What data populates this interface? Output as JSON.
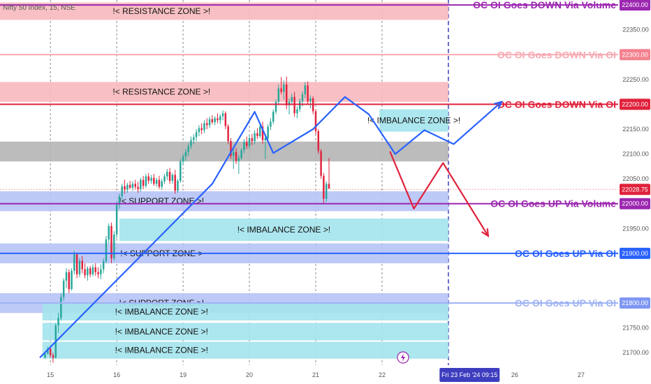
{
  "chart_data": {
    "type": "candlestick",
    "title": "Nifty 50 Index, 15, NSE",
    "ylim": [
      21675,
      22410
    ],
    "yticks": [
      22350,
      22250,
      22150,
      22100,
      22050,
      21950,
      21750,
      21700
    ],
    "current_price": "22028.75",
    "xticks": [
      {
        "label": "15",
        "x": 2
      },
      {
        "label": "16",
        "x": 27
      },
      {
        "label": "19",
        "x": 52
      },
      {
        "label": "20",
        "x": 77
      },
      {
        "label": "21",
        "x": 102
      },
      {
        "label": "22",
        "x": 127
      },
      {
        "label": "26",
        "x": 177
      },
      {
        "label": "27",
        "x": 202
      }
    ],
    "date_badge": "Fri 23 Feb '24  09:15",
    "date_badge_x": 160,
    "xlim": [
      -17,
      216
    ],
    "future_line_x": 152,
    "zones": [
      {
        "label": "!< RESISTANCE ZONE >!",
        "from": 22370,
        "to": 22405,
        "color": "#f7b9be",
        "x0": -17,
        "x1": 152
      },
      {
        "label": "!< RESISTANCE ZONE >!",
        "from": 22205,
        "to": 22245,
        "color": "#f7b9be",
        "x0": -17,
        "x1": 152
      },
      {
        "label": "",
        "from": 22085,
        "to": 22125,
        "color": "#b5b5b5",
        "x0": -17,
        "x1": 152
      },
      {
        "label": "!< IMBALANCE ZONE >!",
        "from": 22145,
        "to": 22190,
        "color": "#a3e3ec",
        "x0": 126,
        "x1": 152
      },
      {
        "label": "!< SUPPORT ZONE >!",
        "from": 21985,
        "to": 22025,
        "color": "#b6c3f5",
        "x0": -17,
        "x1": 152
      },
      {
        "label": "!< IMBALANCE ZONE >!",
        "from": 21925,
        "to": 21970,
        "color": "#a3e3ec",
        "x0": 28,
        "x1": 152
      },
      {
        "label": "!< SUPPORT ZONE >",
        "from": 21880,
        "to": 21920,
        "color": "#b6c3f5",
        "x0": -17,
        "x1": 152
      },
      {
        "label": "!< SUPPORT ZONE >!",
        "from": 21780,
        "to": 21820,
        "color": "#b6c3f5",
        "x0": -17,
        "x1": 152
      },
      {
        "label": "!< IMBALANCE ZONE >!",
        "from": 21765,
        "to": 21800,
        "color": "#a3e3ec",
        "x0": -1,
        "x1": 152
      },
      {
        "label": "!< IMBALANCE ZONE >!",
        "from": 21725,
        "to": 21760,
        "color": "#a3e3ec",
        "x0": -1,
        "x1": 152
      },
      {
        "label": "!< IMBALANCE ZONE >!",
        "from": 21688,
        "to": 21722,
        "color": "#a3e3ec",
        "x0": -1,
        "x1": 152
      }
    ],
    "levels": [
      {
        "label": "OC OI Goes DOWN Via Volume",
        "value": 22400,
        "badge": "22400.00",
        "color": "#9c27b0",
        "badge_color": "#9c27b0",
        "weight": 2
      },
      {
        "label": "OC OI Goes DOWN Via OI",
        "value": 22300,
        "badge": "22300.00",
        "color": "#f7a9b1",
        "badge_color": "#f4828f",
        "weight": 2
      },
      {
        "label": "OC OI Goes DOWN Via OI",
        "value": 22200,
        "badge": "22200.00",
        "color": "#e0223c",
        "badge_color": "#e0223c",
        "weight": 2
      },
      {
        "label": "OC OI Goes UP  Via Volume",
        "value": 22000,
        "badge": "22000.00",
        "color": "#9c27b0",
        "badge_color": "#9c27b0",
        "weight": 2
      },
      {
        "label": "OC OI Goes UP  Via OI",
        "value": 21900,
        "badge": "21900.00",
        "color": "#2962ff",
        "badge_color": "#2962ff",
        "weight": 2
      },
      {
        "label": "OC OI Goes UP  Via OI",
        "value": 21800,
        "badge": "21800.00",
        "color": "#9fb3f5",
        "badge_color": "#7f97f2",
        "weight": 2
      }
    ],
    "candles": [
      [
        21690,
        21702,
        21688,
        21698
      ],
      [
        21698,
        21712,
        21696,
        21708
      ],
      [
        21708,
        21710,
        21690,
        21695
      ],
      [
        21695,
        21700,
        21680,
        21690
      ],
      [
        21690,
        21760,
        21688,
        21755
      ],
      [
        21755,
        21780,
        21740,
        21770
      ],
      [
        21770,
        21820,
        21765,
        21812
      ],
      [
        21812,
        21850,
        21805,
        21845
      ],
      [
        21845,
        21870,
        21830,
        21862
      ],
      [
        21862,
        21868,
        21820,
        21828
      ],
      [
        21828,
        21870,
        21825,
        21865
      ],
      [
        21865,
        21905,
        21858,
        21898
      ],
      [
        21898,
        21900,
        21850,
        21858
      ],
      [
        21858,
        21890,
        21852,
        21885
      ],
      [
        21885,
        21895,
        21860,
        21868
      ],
      [
        21868,
        21880,
        21850,
        21856
      ],
      [
        21856,
        21874,
        21845,
        21870
      ],
      [
        21870,
        21875,
        21852,
        21858
      ],
      [
        21858,
        21878,
        21854,
        21872
      ],
      [
        21872,
        21880,
        21855,
        21862
      ],
      [
        21862,
        21872,
        21850,
        21858
      ],
      [
        21858,
        21878,
        21848,
        21868
      ],
      [
        21868,
        21890,
        21860,
        21884
      ],
      [
        21884,
        21935,
        21880,
        21928
      ],
      [
        21928,
        21960,
        21920,
        21955
      ],
      [
        21955,
        21962,
        21880,
        21890
      ],
      [
        21890,
        21945,
        21885,
        21938
      ],
      [
        21938,
        22005,
        21930,
        21998
      ],
      [
        21998,
        22020,
        21990,
        22015
      ],
      [
        22015,
        22040,
        22008,
        22035
      ],
      [
        22035,
        22048,
        22020,
        22028
      ],
      [
        22028,
        22042,
        22022,
        22038
      ],
      [
        22038,
        22046,
        22030,
        22032
      ],
      [
        22032,
        22045,
        22026,
        22040
      ],
      [
        22040,
        22048,
        22028,
        22034
      ],
      [
        22034,
        22044,
        22022,
        22028
      ],
      [
        22028,
        22052,
        22024,
        22048
      ],
      [
        22048,
        22056,
        22030,
        22036
      ],
      [
        22036,
        22060,
        22032,
        22055
      ],
      [
        22055,
        22062,
        22040,
        22046
      ],
      [
        22046,
        22058,
        22040,
        22052
      ],
      [
        22052,
        22060,
        22036,
        22040
      ],
      [
        22040,
        22052,
        22034,
        22048
      ],
      [
        22048,
        22056,
        22030,
        22034
      ],
      [
        22034,
        22050,
        22028,
        22045
      ],
      [
        22045,
        22060,
        22040,
        22055
      ],
      [
        22055,
        22070,
        22048,
        22064
      ],
      [
        22064,
        22072,
        22040,
        22046
      ],
      [
        22046,
        22062,
        22040,
        22058
      ],
      [
        22058,
        22068,
        22020,
        22026
      ],
      [
        22026,
        22050,
        22022,
        22046
      ],
      [
        22046,
        22090,
        22042,
        22085
      ],
      [
        22085,
        22100,
        22078,
        22095
      ],
      [
        22095,
        22110,
        22086,
        22104
      ],
      [
        22104,
        22122,
        22096,
        22116
      ],
      [
        22116,
        22135,
        22110,
        22128
      ],
      [
        22128,
        22140,
        22120,
        22134
      ],
      [
        22134,
        22150,
        22126,
        22144
      ],
      [
        22144,
        22158,
        22136,
        22152
      ],
      [
        22152,
        22162,
        22140,
        22148
      ],
      [
        22148,
        22168,
        22142,
        22162
      ],
      [
        22162,
        22172,
        22150,
        22158
      ],
      [
        22158,
        22175,
        22152,
        22170
      ],
      [
        22170,
        22178,
        22160,
        22164
      ],
      [
        22164,
        22176,
        22158,
        22172
      ],
      [
        22172,
        22182,
        22162,
        22168
      ],
      [
        22168,
        22180,
        22160,
        22176
      ],
      [
        22176,
        22188,
        22168,
        22182
      ],
      [
        22182,
        22186,
        22150,
        22156
      ],
      [
        22156,
        22160,
        22120,
        22126
      ],
      [
        22126,
        22132,
        22090,
        22096
      ],
      [
        22096,
        22110,
        22070,
        22104
      ],
      [
        22104,
        22112,
        22080,
        22086
      ],
      [
        22086,
        22098,
        22060,
        22092
      ],
      [
        22092,
        22112,
        22088,
        22108
      ],
      [
        22108,
        22130,
        22102,
        22124
      ],
      [
        22124,
        22135,
        22110,
        22116
      ],
      [
        22116,
        22138,
        22110,
        22132
      ],
      [
        22132,
        22140,
        22118,
        22126
      ],
      [
        22126,
        22148,
        22120,
        22142
      ],
      [
        22142,
        22152,
        22130,
        22136
      ],
      [
        22136,
        22160,
        22132,
        22155
      ],
      [
        22155,
        22165,
        22120,
        22128
      ],
      [
        22128,
        22140,
        22090,
        22132
      ],
      [
        22132,
        22160,
        22126,
        22155
      ],
      [
        22155,
        22172,
        22148,
        22165
      ],
      [
        22165,
        22190,
        22160,
        22185
      ],
      [
        22185,
        22210,
        22180,
        22205
      ],
      [
        22205,
        22240,
        22200,
        22232
      ],
      [
        22232,
        22255,
        22220,
        22225
      ],
      [
        22225,
        22248,
        22210,
        22240
      ],
      [
        22240,
        22256,
        22190,
        22198
      ],
      [
        22198,
        22212,
        22180,
        22205
      ],
      [
        22205,
        22222,
        22198,
        22215
      ],
      [
        22215,
        22225,
        22175,
        22182
      ],
      [
        22182,
        22196,
        22172,
        22190
      ],
      [
        22190,
        22212,
        22185,
        22206
      ],
      [
        22206,
        22226,
        22196,
        22220
      ],
      [
        22220,
        22245,
        22212,
        22238
      ],
      [
        22238,
        22246,
        22200,
        22206
      ],
      [
        22206,
        22218,
        22192,
        22212
      ],
      [
        22212,
        22216,
        22180,
        22186
      ],
      [
        22186,
        22190,
        22140,
        22146
      ],
      [
        22146,
        22150,
        22100,
        22106
      ],
      [
        22106,
        22110,
        22050,
        22056
      ],
      [
        22056,
        22062,
        22000,
        22010
      ],
      [
        22010,
        22045,
        22004,
        22040
      ],
      [
        22040,
        22092,
        22030,
        22030
      ]
    ],
    "blue_path": [
      [
        -2,
        21690
      ],
      [
        63,
        22040
      ],
      [
        79,
        22185
      ],
      [
        86,
        22102
      ],
      [
        101,
        22150
      ],
      [
        113,
        22215
      ],
      [
        122,
        22180
      ],
      [
        132,
        22100
      ],
      [
        143,
        22148
      ],
      [
        154,
        22120
      ],
      [
        172,
        22205
      ]
    ],
    "red_path": [
      [
        130,
        22105
      ],
      [
        139,
        21990
      ],
      [
        150,
        22082
      ],
      [
        167,
        21935
      ]
    ]
  }
}
